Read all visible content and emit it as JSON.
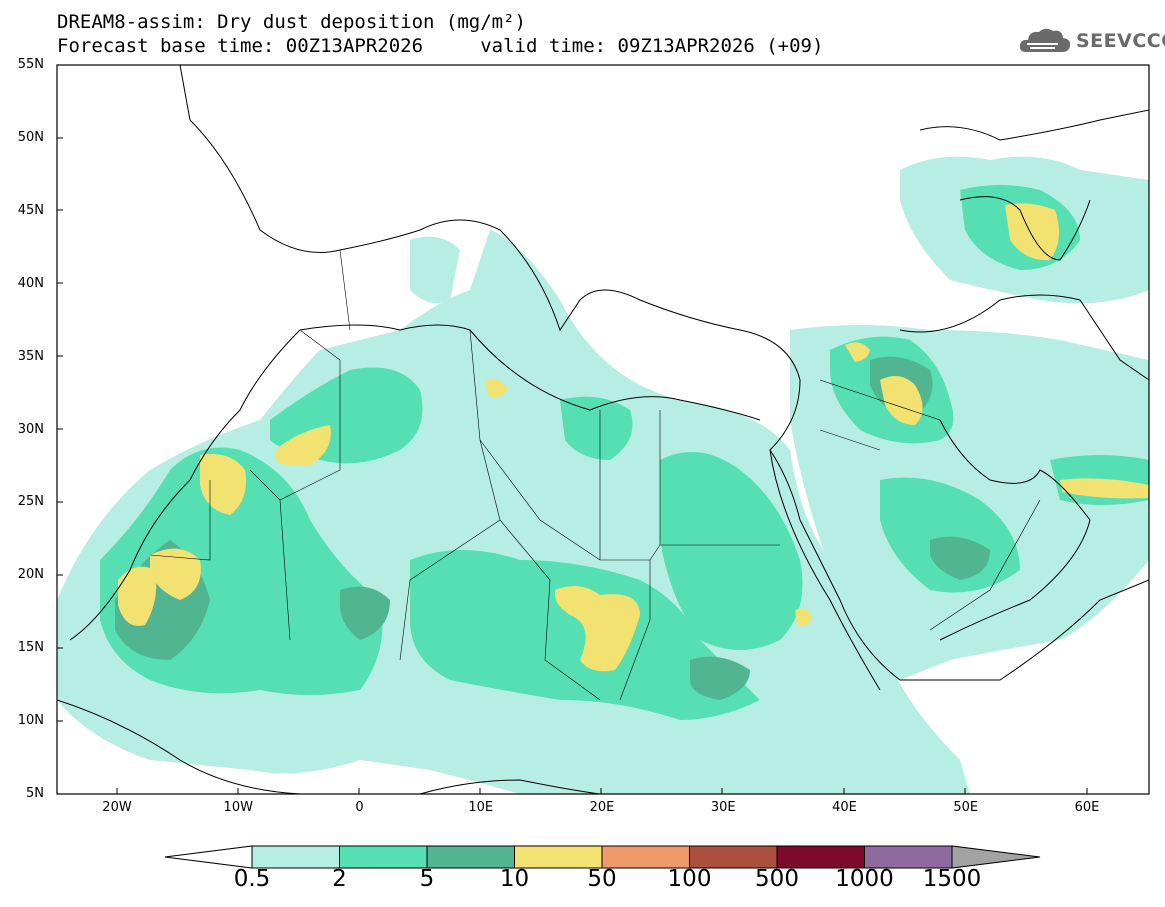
{
  "title": {
    "line1": "DREAM8-assim: Dry dust deposition (mg/m²)",
    "line2": "Forecast base time: 00Z13APR2026     valid time: 09Z13APR2026 (+09)"
  },
  "logo": {
    "text": "SEEVCCC",
    "icon": "cloud-icon"
  },
  "map": {
    "lat_labels": [
      "55N",
      "50N",
      "45N",
      "40N",
      "35N",
      "30N",
      "25N",
      "20N",
      "15N",
      "10N",
      "5N"
    ],
    "lon_labels": [
      "20W",
      "10W",
      "0",
      "10E",
      "20E",
      "30E",
      "40E",
      "50E",
      "60E"
    ],
    "lon_range": [
      -25,
      65
    ],
    "lat_range": [
      5,
      55
    ]
  },
  "colorbar": {
    "labels": [
      "0.5",
      "2",
      "5",
      "10",
      "50",
      "100",
      "500",
      "1000",
      "1500"
    ],
    "colors": [
      "#ffffff",
      "#b7eee3",
      "#55dfb3",
      "#52b592",
      "#f2e272",
      "#ef9a6a",
      "#ad4f3f",
      "#7d0a2c",
      "#8f6a9f",
      "#a3a3a3"
    ]
  }
}
